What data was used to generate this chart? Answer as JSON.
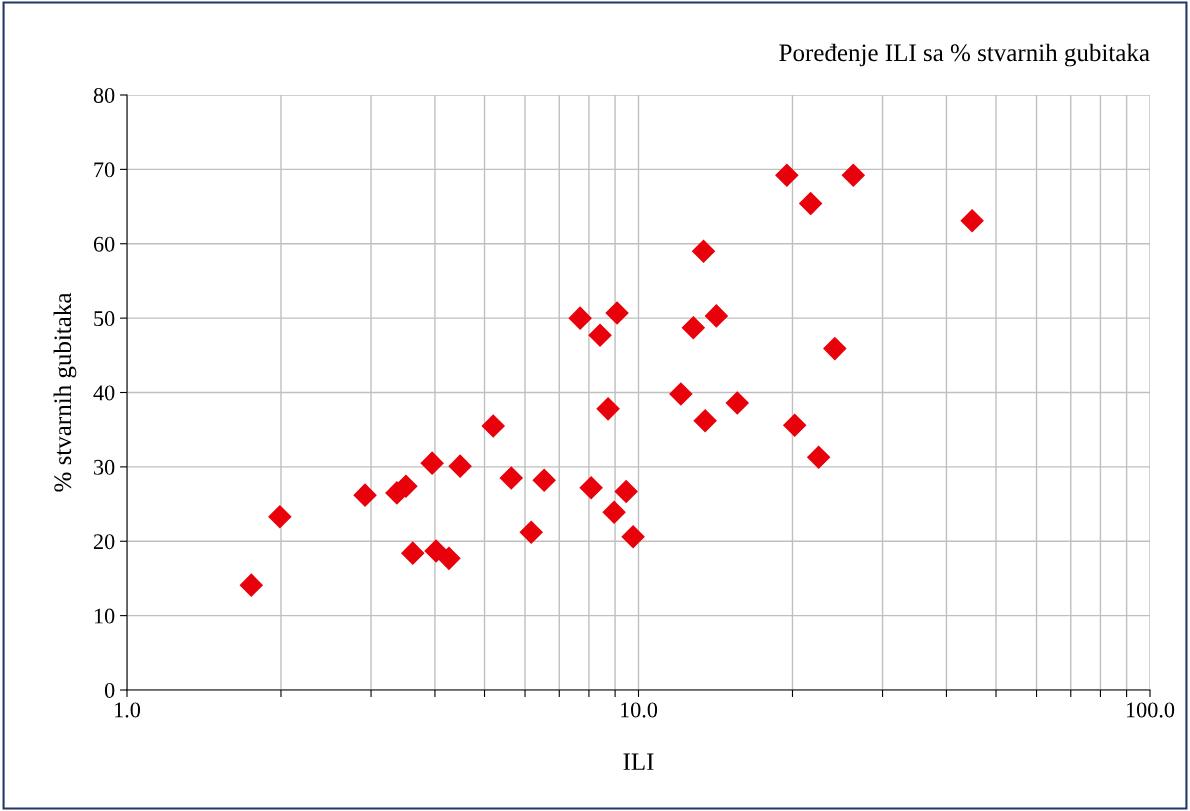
{
  "chart_data": {
    "type": "scatter",
    "title": "Poređenje ILI sa % stvarnih gubitaka",
    "xlabel": "ILI",
    "ylabel": "% stvarnih gubitaka",
    "x": [
      1.75,
      1.99,
      2.92,
      3.37,
      3.51,
      3.62,
      3.95,
      4.02,
      4.26,
      4.48,
      5.2,
      5.64,
      6.17,
      6.54,
      7.69,
      8.08,
      8.41,
      8.72,
      8.96,
      9.08,
      9.46,
      9.76,
      12.1,
      12.8,
      13.4,
      13.5,
      14.2,
      15.6,
      20.2,
      19.5,
      21.7,
      22.5,
      24.2,
      26.3,
      44.9
    ],
    "values": [
      14.1,
      23.3,
      26.2,
      26.5,
      27.4,
      18.4,
      30.5,
      18.7,
      17.7,
      30.1,
      35.5,
      28.5,
      21.2,
      28.2,
      50.0,
      27.2,
      47.7,
      37.8,
      23.9,
      50.7,
      26.7,
      20.6,
      39.8,
      48.7,
      59.0,
      36.2,
      50.3,
      38.6,
      35.6,
      69.2,
      65.4,
      31.3,
      45.9,
      69.2,
      63.1
    ],
    "color": "#e8000b",
    "marker": "diamond",
    "log": "x",
    "grid": true,
    "xlim": [
      1,
      100
    ],
    "xticks": [
      {
        "value": 1,
        "label": "1.0"
      },
      {
        "value": 2,
        "label": null
      },
      {
        "value": 3,
        "label": null
      },
      {
        "value": 4,
        "label": null
      },
      {
        "value": 5,
        "label": null
      },
      {
        "value": 6,
        "label": null
      },
      {
        "value": 7,
        "label": null
      },
      {
        "value": 8,
        "label": null
      },
      {
        "value": 9,
        "label": null
      },
      {
        "value": 10,
        "label": "10.0"
      },
      {
        "value": 20,
        "label": null
      },
      {
        "value": 30,
        "label": null
      },
      {
        "value": 40,
        "label": null
      },
      {
        "value": 50,
        "label": null
      },
      {
        "value": 60,
        "label": null
      },
      {
        "value": 70,
        "label": null
      },
      {
        "value": 80,
        "label": null
      },
      {
        "value": 90,
        "label": null
      },
      {
        "value": 100,
        "label": "100.0"
      }
    ],
    "ylim": [
      0,
      80
    ],
    "yticks": [
      0,
      10,
      20,
      30,
      40,
      50,
      60,
      70,
      80
    ]
  }
}
